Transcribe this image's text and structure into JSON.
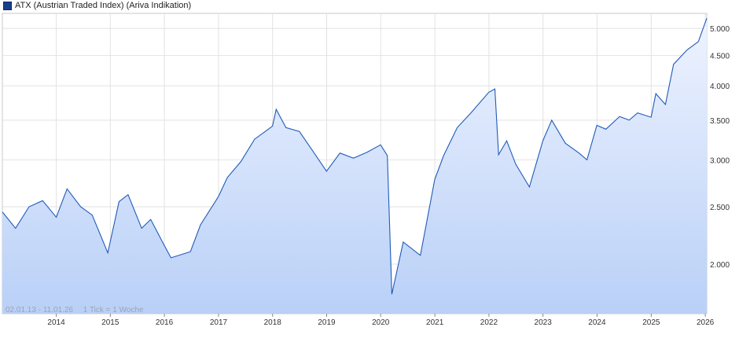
{
  "chart_data": {
    "type": "line",
    "title": "",
    "series": [
      {
        "name": "ATX (Austrian Traded Index) (Ariva Indikation)",
        "x": [
          "2013-01-02",
          "2013-04-01",
          "2013-07-01",
          "2013-10-01",
          "2014-01-01",
          "2014-03-15",
          "2014-06-15",
          "2014-09-01",
          "2014-12-15",
          "2015-03-01",
          "2015-05-01",
          "2015-08-01",
          "2015-10-01",
          "2016-01-01",
          "2016-02-15",
          "2016-06-25",
          "2016-09-01",
          "2016-12-31",
          "2017-03-01",
          "2017-06-01",
          "2017-09-01",
          "2017-12-31",
          "2018-01-25",
          "2018-04-01",
          "2018-07-01",
          "2018-10-01",
          "2018-12-31",
          "2019-04-01",
          "2019-07-01",
          "2019-10-01",
          "2019-12-31",
          "2020-02-15",
          "2020-03-16",
          "2020-06-01",
          "2020-09-25",
          "2020-12-31",
          "2021-03-01",
          "2021-06-01",
          "2021-09-01",
          "2021-12-31",
          "2022-02-10",
          "2022-03-07",
          "2022-05-01",
          "2022-07-01",
          "2022-10-01",
          "2022-12-31",
          "2023-03-01",
          "2023-06-01",
          "2023-09-01",
          "2023-10-25",
          "2023-12-31",
          "2024-03-01",
          "2024-06-01",
          "2024-08-05",
          "2024-10-01",
          "2024-12-31",
          "2025-02-01",
          "2025-04-07",
          "2025-06-01",
          "2025-09-01",
          "2025-11-15",
          "2026-01-11"
        ],
        "y": [
          2450,
          2300,
          2500,
          2560,
          2400,
          2680,
          2500,
          2420,
          2090,
          2550,
          2620,
          2300,
          2380,
          2150,
          2050,
          2100,
          2330,
          2600,
          2800,
          2980,
          3250,
          3420,
          3650,
          3400,
          3350,
          3100,
          2870,
          3080,
          3020,
          3090,
          3180,
          3050,
          1780,
          2180,
          2070,
          2780,
          3050,
          3400,
          3600,
          3900,
          3950,
          3060,
          3230,
          2950,
          2700,
          3230,
          3500,
          3200,
          3080,
          3000,
          3430,
          3380,
          3550,
          3500,
          3600,
          3540,
          3880,
          3720,
          4350,
          4600,
          4750,
          5200
        ]
      }
    ],
    "xlabel": "",
    "ylabel": "",
    "xlim": [
      "2013-01-02",
      "2026-01-11"
    ],
    "ylim": [
      1650,
      5300
    ],
    "yscale": "log",
    "x_tick_labels": [
      "2014",
      "2015",
      "2016",
      "2017",
      "2018",
      "2019",
      "2020",
      "2021",
      "2022",
      "2023",
      "2024",
      "2025",
      "2026"
    ],
    "y_ticks": [
      2000,
      2500,
      3000,
      3500,
      4000,
      4500,
      5000
    ],
    "y_tick_labels": [
      "2.000",
      "2.500",
      "3.000",
      "3.500",
      "4.000",
      "4.500",
      "5.000"
    ],
    "grid": true,
    "legend": "top-left",
    "line_color": "#1f5bb8",
    "fill_top_color": "#eef3ff",
    "fill_bottom_color": "#b9d0f7"
  },
  "footer": {
    "range": "02.01.13 - 11.01.26",
    "tick_info": "1 Tick = 1 Woche"
  }
}
